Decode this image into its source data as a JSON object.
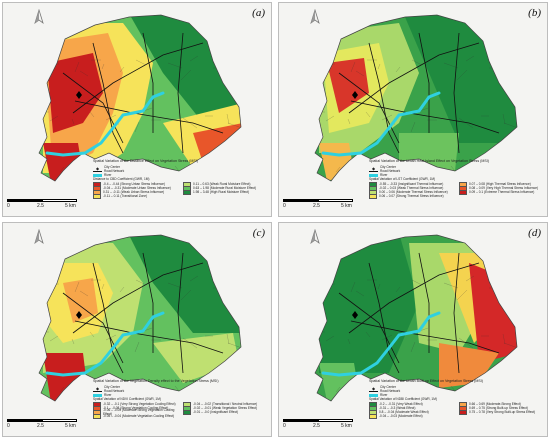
{
  "panels": [
    {
      "id": "a",
      "label": "(a)",
      "legend_title": "Spatial Variation of the Distance Effect on Vegetation Stress (MSI)",
      "class_title": "Distance to CBD Coefficient (GWR, 1M)",
      "classes": [
        {
          "label": "-0.4 – -0.44 (Strong Urban Stress Influence)",
          "color": "#c81e1e"
        },
        {
          "label": "-0.04 – -0.31 (Moderate Urban Stress Influence)",
          "color": "#e8562a"
        },
        {
          "label": "0.31 – -0.11 (Weak Urban Stress Influence)",
          "color": "#f7a64a"
        },
        {
          "label": "-0.11 – 0.11 (Transitional Zone)",
          "color": "#f6e35a"
        },
        {
          "label": "0.11 – 0.63 (Weak Rural Moisture Effect)",
          "color": "#bfe071"
        },
        {
          "label": "0.63 – 1.98 (Moderate Rural Moisture Effect)",
          "color": "#63c15f"
        },
        {
          "label": "1.98 – 3.48 (High Rural Moisture Effect)",
          "color": "#1f8b3f"
        }
      ],
      "palette": [
        "#1f8b3f",
        "#63c15f",
        "#bfe071",
        "#f6e35a",
        "#f7a64a",
        "#e8562a",
        "#c81e1e"
      ],
      "scale": [
        "0",
        "2.5",
        "5 km"
      ]
    },
    {
      "id": "b",
      "label": "(b)",
      "legend_title": "Spatial Variation of the Urban Heat Island  Effect on Vegetation Stress (MSI)",
      "class_title": "Spatial Variation of LST Coefficient (GWR, 1M)",
      "classes": [
        {
          "label": "-0.55 – -0.33 (Insignificant Thermal Influence)",
          "color": "#1f8b3f"
        },
        {
          "label": "-0.02 – 0.03 (Weak Thermal Stress Influence)",
          "color": "#63c15f"
        },
        {
          "label": "0.00 – 0.06 (Moderate Thermal Stress Influence)",
          "color": "#bfe071"
        },
        {
          "label": "0.06 – 0.07 (Strong Thermal Stress Influence)",
          "color": "#f6e35a"
        },
        {
          "label": "0.07 – 0.08 (High Thermal Stress Influence)",
          "color": "#f7a64a"
        },
        {
          "label": "0.08 – 0.09 (Very High Thermal Stress Influence)",
          "color": "#e8562a"
        },
        {
          "label": "0.09 – 0.1 (Extreme Thermal Stress Influence)",
          "color": "#c81e1e"
        }
      ],
      "palette": [
        "#1f8b3f",
        "#3aa24a",
        "#6cc35e",
        "#a9d86a",
        "#e3e85e",
        "#f4b84c",
        "#d8362a"
      ],
      "scale": [
        "0",
        "2.5",
        "5 km"
      ]
    },
    {
      "id": "c",
      "label": "(c)",
      "legend_title": "Spatial Variation of the Vegetation Density effect to the Vegetation Stress (MSI)",
      "class_title": "Spatial Variation of NDVI Coefficient (GWR, 1M)",
      "classes": [
        {
          "label": "-0.32 – -0.1 (Very Strong Vegetation Cooling Effect)",
          "color": "#c81e1e"
        },
        {
          "label": "-0.1 – -0.08 (Strong Vegetation Cooling Effect)",
          "color": "#e8562a"
        },
        {
          "label": "-0.06 – -0.05 (Moderate Strong Vegetation Cooling Effect)",
          "color": "#f7a64a"
        },
        {
          "label": "-0.05 – -0.04 (Moderate Vegetation Cooling Effect)",
          "color": "#f6e35a"
        },
        {
          "label": "-0.04 – -0.02 (Transitional / Neutral Influence)",
          "color": "#bfe071"
        },
        {
          "label": "-0.02 – -0.01 (Weak Vegetation Stress Effect)",
          "color": "#63c15f"
        },
        {
          "label": "-0.01 – -0.0 (Insignificant Effect)",
          "color": "#1f8b3f"
        }
      ],
      "palette": [
        "#1f8b3f",
        "#63c15f",
        "#bfe071",
        "#f6e35a",
        "#f7a64a",
        "#e8562a",
        "#c81e1e"
      ],
      "scale": [
        "0",
        "2.5",
        "5 km"
      ]
    },
    {
      "id": "d",
      "label": "(d)",
      "legend_title": "Spatial Variation of the Urban Built-up Effect on Vegetation Stress (MSI)",
      "class_title": "Spatial Variation of NDBI Coefficient (GWR, 1M)",
      "classes": [
        {
          "label": "-0.2 – -0.31 (Very Weak Effect)",
          "color": "#1f8b3f"
        },
        {
          "label": "-0.31 – -0.3 (Weak Effect)",
          "color": "#63c15f"
        },
        {
          "label": "0.8 – -0.04 (Moderate Weak Effect)",
          "color": "#bfe071"
        },
        {
          "label": "-0.04 – -0.03 (Moderate Effect)",
          "color": "#f6e35a"
        },
        {
          "label": "0.66 – 0.69 (Moderate-Strong Effect)",
          "color": "#f7a64a"
        },
        {
          "label": "0.69 – 0.75 (Strong Built-up Stress Effect)",
          "color": "#e8562a"
        },
        {
          "label": "0.75 – 0.78 (Very Strong Built-up Stress Effect)",
          "color": "#c81e1e"
        }
      ],
      "palette": [
        "#1f8b3f",
        "#3aa24a",
        "#63c15f",
        "#a9d86a",
        "#f4d34f",
        "#f08a3c",
        "#d42828"
      ],
      "scale": [
        "0",
        "2.5",
        "5 km"
      ]
    }
  ],
  "common_legend": {
    "city_center": "City Center",
    "road_network": "Road Network",
    "river": "River"
  }
}
